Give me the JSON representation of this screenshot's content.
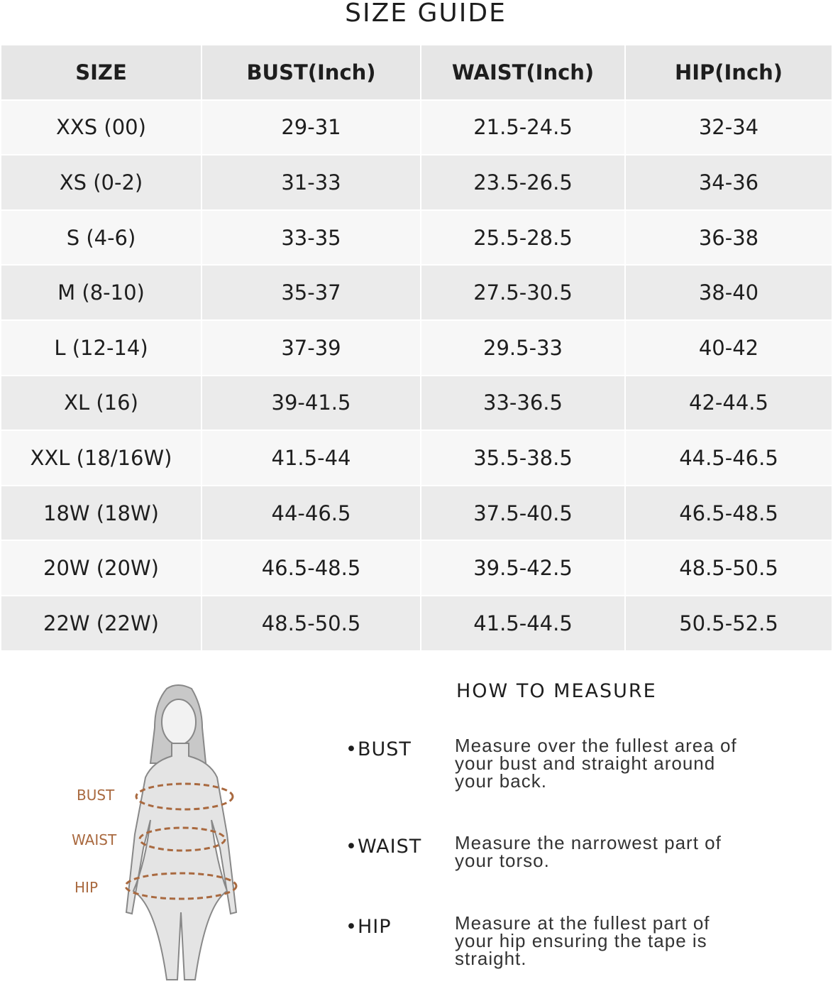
{
  "header": {
    "title": "SIZE GUIDE"
  },
  "table": {
    "columns": [
      "SIZE",
      "BUST(Inch)",
      "WAIST(Inch)",
      "HIP(Inch)"
    ],
    "rows": [
      [
        "XXS (00)",
        "29-31",
        "21.5-24.5",
        "32-34"
      ],
      [
        "XS (0-2)",
        "31-33",
        "23.5-26.5",
        "34-36"
      ],
      [
        "S (4-6)",
        "33-35",
        "25.5-28.5",
        "36-38"
      ],
      [
        "M (8-10)",
        "35-37",
        "27.5-30.5",
        "38-40"
      ],
      [
        "L (12-14)",
        "37-39",
        "29.5-33",
        "40-42"
      ],
      [
        "XL (16)",
        "39-41.5",
        "33-36.5",
        "42-44.5"
      ],
      [
        "XXL (18/16W)",
        "41.5-44",
        "35.5-38.5",
        "44.5-46.5"
      ],
      [
        "18W (18W)",
        "44-46.5",
        "37.5-40.5",
        "46.5-48.5"
      ],
      [
        "20W (20W)",
        "46.5-48.5",
        "39.5-42.5",
        "48.5-50.5"
      ],
      [
        "22W (22W)",
        "48.5-50.5",
        "41.5-44.5",
        "50.5-52.5"
      ]
    ]
  },
  "figure": {
    "labels": [
      "BUST",
      "WAIST",
      "HIP"
    ]
  },
  "measure": {
    "title": "HOW TO MEASURE",
    "items": [
      {
        "label": "BUST",
        "text": "Measure over the fullest area of your bust and straight around your back."
      },
      {
        "label": "WAIST",
        "text": "Measure the narrowest part of your torso."
      },
      {
        "label": "HIP",
        "text": "Measure at the fullest part of your hip ensuring the tape is straight."
      }
    ]
  }
}
